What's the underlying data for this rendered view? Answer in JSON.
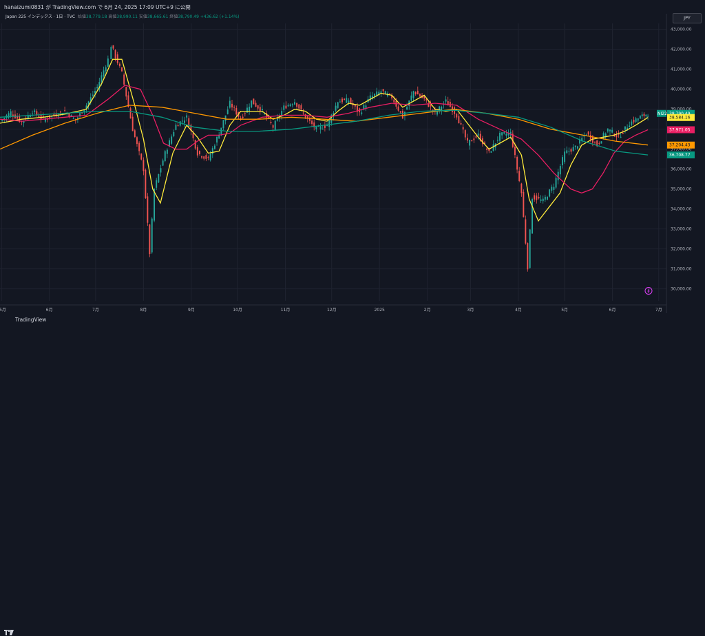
{
  "header": {
    "publish_line": "hanaizumi0831 が TradingView.com で 6月 24, 2025 17:09 UTC+9 に公開"
  },
  "legend": {
    "symbol": "Japan 225 インデックス · 1日 · TVC",
    "open_label": "始値",
    "open": "38,779.18",
    "high_label": "高値",
    "high": "38,990.11",
    "low_label": "安値",
    "low": "38,665.61",
    "close_label": "終値",
    "close": "38,790.49",
    "change": "+436.62 (+1.14%)"
  },
  "currency_button": "JPY",
  "footer": {
    "brand": "TradingView"
  },
  "colors": {
    "background": "#131722",
    "grid": "#1f2330",
    "up": "#26a69a",
    "down": "#ef5350",
    "ma_short": "#ffeb3b",
    "ma_mid": "#e91e63",
    "ma_long_orange": "#ff9800",
    "ma_long_teal": "#089981"
  },
  "chart_data": {
    "type": "line",
    "title": "",
    "ylim": [
      29400,
      43300
    ],
    "y_ticks": [
      30000,
      31000,
      32000,
      33000,
      34000,
      35000,
      36000,
      37000,
      38000,
      39000,
      40000,
      41000,
      42000,
      43000
    ],
    "y_tick_labels": [
      "30,000.00",
      "31,000.00",
      "32,000.00",
      "33,000.00",
      "34,000.00",
      "35,000.00",
      "36,000.00",
      "37,000.00",
      "38,000.00",
      "39,000.00",
      "40,000.00",
      "41,000.00",
      "42,000.00",
      "43,000.00"
    ],
    "x_ticks": [
      "5月",
      "6月",
      "7月",
      "8月",
      "9月",
      "10月",
      "11月",
      "12月",
      "2025",
      "2月",
      "3月",
      "4月",
      "5月",
      "6月",
      "7月"
    ],
    "x_tick_dates": [
      "2024-05-01",
      "2024-06-01",
      "2024-07-01",
      "2024-08-01",
      "2024-09-01",
      "2024-10-01",
      "2024-11-01",
      "2024-12-01",
      "2025-01-01",
      "2025-02-01",
      "2025-03-01",
      "2025-04-01",
      "2025-05-01",
      "2025-06-01",
      "2025-07-01"
    ],
    "x_range": [
      "2024-04-30",
      "2025-07-06"
    ],
    "grid": true,
    "price_tags": [
      {
        "label": "NI225",
        "value": "38,790.49",
        "y": 38790,
        "bg": "#089981",
        "fg": "#ffffff"
      },
      {
        "label": "",
        "value": "38,584.16",
        "y": 38584,
        "bg": "#ffeb3b",
        "fg": "#131722"
      },
      {
        "label": "",
        "value": "37,971.05",
        "y": 37971,
        "bg": "#e91e63",
        "fg": "#ffffff"
      },
      {
        "label": "",
        "value": "37,204.43",
        "y": 37204,
        "bg": "#ff9800",
        "fg": "#131722"
      },
      {
        "label": "",
        "value": "36,708.77",
        "y": 36709,
        "bg": "#089981",
        "fg": "#ffffff"
      }
    ],
    "price_series": [
      [
        "2024-04-30",
        38400
      ],
      [
        "2024-05-07",
        38850
      ],
      [
        "2024-05-14",
        38350
      ],
      [
        "2024-05-21",
        38900
      ],
      [
        "2024-05-28",
        38500
      ],
      [
        "2024-06-04",
        38700
      ],
      [
        "2024-06-11",
        38900
      ],
      [
        "2024-06-18",
        38450
      ],
      [
        "2024-06-25",
        39200
      ],
      [
        "2024-07-02",
        40100
      ],
      [
        "2024-07-09",
        41500
      ],
      [
        "2024-07-11",
        42200
      ],
      [
        "2024-07-18",
        40800
      ],
      [
        "2024-07-25",
        38000
      ],
      [
        "2024-08-01",
        36000
      ],
      [
        "2024-08-05",
        31800
      ],
      [
        "2024-08-08",
        35000
      ],
      [
        "2024-08-15",
        36800
      ],
      [
        "2024-08-22",
        38200
      ],
      [
        "2024-08-29",
        38600
      ],
      [
        "2024-09-05",
        36800
      ],
      [
        "2024-09-12",
        36500
      ],
      [
        "2024-09-19",
        37800
      ],
      [
        "2024-09-26",
        39300
      ],
      [
        "2024-10-03",
        38500
      ],
      [
        "2024-10-10",
        39400
      ],
      [
        "2024-10-17",
        38900
      ],
      [
        "2024-10-24",
        38100
      ],
      [
        "2024-10-31",
        39100
      ],
      [
        "2024-11-07",
        39400
      ],
      [
        "2024-11-14",
        38600
      ],
      [
        "2024-11-21",
        38000
      ],
      [
        "2024-11-28",
        38200
      ],
      [
        "2024-12-05",
        39400
      ],
      [
        "2024-12-12",
        39450
      ],
      [
        "2024-12-19",
        38800
      ],
      [
        "2024-12-26",
        39600
      ],
      [
        "2025-01-02",
        39900
      ],
      [
        "2025-01-09",
        39600
      ],
      [
        "2025-01-16",
        38600
      ],
      [
        "2025-01-23",
        39900
      ],
      [
        "2025-01-30",
        39500
      ],
      [
        "2025-02-06",
        38800
      ],
      [
        "2025-02-13",
        39400
      ],
      [
        "2025-02-20",
        38700
      ],
      [
        "2025-02-27",
        37300
      ],
      [
        "2025-03-06",
        37700
      ],
      [
        "2025-03-13",
        36800
      ],
      [
        "2025-03-20",
        37700
      ],
      [
        "2025-03-27",
        37800
      ],
      [
        "2025-04-03",
        34800
      ],
      [
        "2025-04-07",
        31100
      ],
      [
        "2025-04-10",
        34600
      ],
      [
        "2025-04-17",
        34400
      ],
      [
        "2025-04-24",
        35200
      ],
      [
        "2025-05-01",
        36800
      ],
      [
        "2025-05-08",
        37100
      ],
      [
        "2025-05-15",
        37800
      ],
      [
        "2025-05-22",
        37200
      ],
      [
        "2025-05-29",
        38000
      ],
      [
        "2025-06-05",
        37600
      ],
      [
        "2025-06-12",
        38300
      ],
      [
        "2025-06-19",
        38600
      ],
      [
        "2025-06-24",
        38790
      ]
    ],
    "series": [
      {
        "color": "#ffeb3b",
        "points": [
          [
            "2024-04-30",
            38300
          ],
          [
            "2024-05-14",
            38500
          ],
          [
            "2024-05-28",
            38600
          ],
          [
            "2024-06-11",
            38750
          ],
          [
            "2024-06-25",
            39000
          ],
          [
            "2024-07-05",
            40300
          ],
          [
            "2024-07-12",
            41500
          ],
          [
            "2024-07-18",
            41500
          ],
          [
            "2024-07-26",
            39300
          ],
          [
            "2024-08-01",
            37500
          ],
          [
            "2024-08-07",
            35000
          ],
          [
            "2024-08-12",
            34300
          ],
          [
            "2024-08-20",
            36800
          ],
          [
            "2024-08-29",
            38200
          ],
          [
            "2024-09-05",
            37600
          ],
          [
            "2024-09-12",
            36800
          ],
          [
            "2024-09-19",
            36900
          ],
          [
            "2024-09-26",
            38200
          ],
          [
            "2024-10-03",
            38900
          ],
          [
            "2024-10-10",
            38900
          ],
          [
            "2024-10-17",
            38900
          ],
          [
            "2024-10-24",
            38500
          ],
          [
            "2024-10-31",
            38700
          ],
          [
            "2024-11-07",
            39000
          ],
          [
            "2024-11-14",
            38900
          ],
          [
            "2024-11-21",
            38500
          ],
          [
            "2024-11-28",
            38400
          ],
          [
            "2024-12-05",
            38900
          ],
          [
            "2024-12-12",
            39300
          ],
          [
            "2024-12-19",
            39200
          ],
          [
            "2025-01-02",
            39800
          ],
          [
            "2025-01-09",
            39700
          ],
          [
            "2025-01-16",
            39100
          ],
          [
            "2025-01-23",
            39400
          ],
          [
            "2025-01-30",
            39700
          ],
          [
            "2025-02-06",
            39000
          ],
          [
            "2025-02-13",
            38900
          ],
          [
            "2025-02-20",
            39000
          ],
          [
            "2025-02-27",
            38300
          ],
          [
            "2025-03-06",
            37600
          ],
          [
            "2025-03-13",
            37000
          ],
          [
            "2025-03-20",
            37300
          ],
          [
            "2025-03-27",
            37600
          ],
          [
            "2025-04-03",
            36700
          ],
          [
            "2025-04-08",
            34500
          ],
          [
            "2025-04-14",
            33400
          ],
          [
            "2025-04-21",
            34100
          ],
          [
            "2025-04-28",
            34800
          ],
          [
            "2025-05-05",
            36200
          ],
          [
            "2025-05-12",
            37200
          ],
          [
            "2025-05-19",
            37500
          ],
          [
            "2025-05-26",
            37600
          ],
          [
            "2025-06-02",
            37700
          ],
          [
            "2025-06-09",
            37900
          ],
          [
            "2025-06-16",
            38200
          ],
          [
            "2025-06-24",
            38584
          ]
        ]
      },
      {
        "color": "#e91e63",
        "points": [
          [
            "2024-04-30",
            38500
          ],
          [
            "2024-05-14",
            38400
          ],
          [
            "2024-05-28",
            38500
          ],
          [
            "2024-06-11",
            38600
          ],
          [
            "2024-06-25",
            38700
          ],
          [
            "2024-07-09",
            39500
          ],
          [
            "2024-07-20",
            40200
          ],
          [
            "2024-07-30",
            40000
          ],
          [
            "2024-08-07",
            38700
          ],
          [
            "2024-08-14",
            37300
          ],
          [
            "2024-08-22",
            37000
          ],
          [
            "2024-08-29",
            37000
          ],
          [
            "2024-09-05",
            37400
          ],
          [
            "2024-09-12",
            37700
          ],
          [
            "2024-09-19",
            37700
          ],
          [
            "2024-09-26",
            37800
          ],
          [
            "2024-10-03",
            38200
          ],
          [
            "2024-10-17",
            38600
          ],
          [
            "2024-10-31",
            38700
          ],
          [
            "2024-11-14",
            38700
          ],
          [
            "2024-11-28",
            38600
          ],
          [
            "2024-12-12",
            38800
          ],
          [
            "2024-12-26",
            39100
          ],
          [
            "2025-01-09",
            39300
          ],
          [
            "2025-01-23",
            39200
          ],
          [
            "2025-02-06",
            39300
          ],
          [
            "2025-02-20",
            39200
          ],
          [
            "2025-03-06",
            38500
          ],
          [
            "2025-03-20",
            38000
          ],
          [
            "2025-04-03",
            37500
          ],
          [
            "2025-04-14",
            36700
          ],
          [
            "2025-04-24",
            35800
          ],
          [
            "2025-05-05",
            35000
          ],
          [
            "2025-05-12",
            34800
          ],
          [
            "2025-05-19",
            35000
          ],
          [
            "2025-05-26",
            35800
          ],
          [
            "2025-06-02",
            36800
          ],
          [
            "2025-06-09",
            37400
          ],
          [
            "2025-06-16",
            37700
          ],
          [
            "2025-06-24",
            37971
          ]
        ]
      },
      {
        "color": "#ff9800",
        "points": [
          [
            "2024-04-30",
            37000
          ],
          [
            "2024-05-21",
            37700
          ],
          [
            "2024-06-11",
            38300
          ],
          [
            "2024-07-02",
            38800
          ],
          [
            "2024-07-23",
            39200
          ],
          [
            "2024-08-13",
            39100
          ],
          [
            "2024-09-03",
            38800
          ],
          [
            "2024-09-24",
            38500
          ],
          [
            "2024-10-15",
            38500
          ],
          [
            "2024-11-05",
            38600
          ],
          [
            "2024-11-26",
            38500
          ],
          [
            "2024-12-17",
            38400
          ],
          [
            "2025-01-07",
            38600
          ],
          [
            "2025-01-28",
            38800
          ],
          [
            "2025-02-18",
            39000
          ],
          [
            "2025-03-11",
            38800
          ],
          [
            "2025-04-01",
            38500
          ],
          [
            "2025-04-22",
            38000
          ],
          [
            "2025-05-13",
            37700
          ],
          [
            "2025-06-03",
            37400
          ],
          [
            "2025-06-24",
            37204
          ]
        ]
      },
      {
        "color": "#089981",
        "points": [
          [
            "2024-04-30",
            38600
          ],
          [
            "2024-05-21",
            38700
          ],
          [
            "2024-06-11",
            38800
          ],
          [
            "2024-07-02",
            38900
          ],
          [
            "2024-07-23",
            38900
          ],
          [
            "2024-08-13",
            38600
          ],
          [
            "2024-09-03",
            38100
          ],
          [
            "2024-09-24",
            37900
          ],
          [
            "2024-10-15",
            37900
          ],
          [
            "2024-11-05",
            38000
          ],
          [
            "2024-11-26",
            38200
          ],
          [
            "2024-12-17",
            38400
          ],
          [
            "2025-01-07",
            38700
          ],
          [
            "2025-01-28",
            38900
          ],
          [
            "2025-02-18",
            38950
          ],
          [
            "2025-03-11",
            38800
          ],
          [
            "2025-04-01",
            38600
          ],
          [
            "2025-04-22",
            38100
          ],
          [
            "2025-05-13",
            37400
          ],
          [
            "2025-06-03",
            36900
          ],
          [
            "2025-06-24",
            36709
          ]
        ]
      }
    ]
  }
}
